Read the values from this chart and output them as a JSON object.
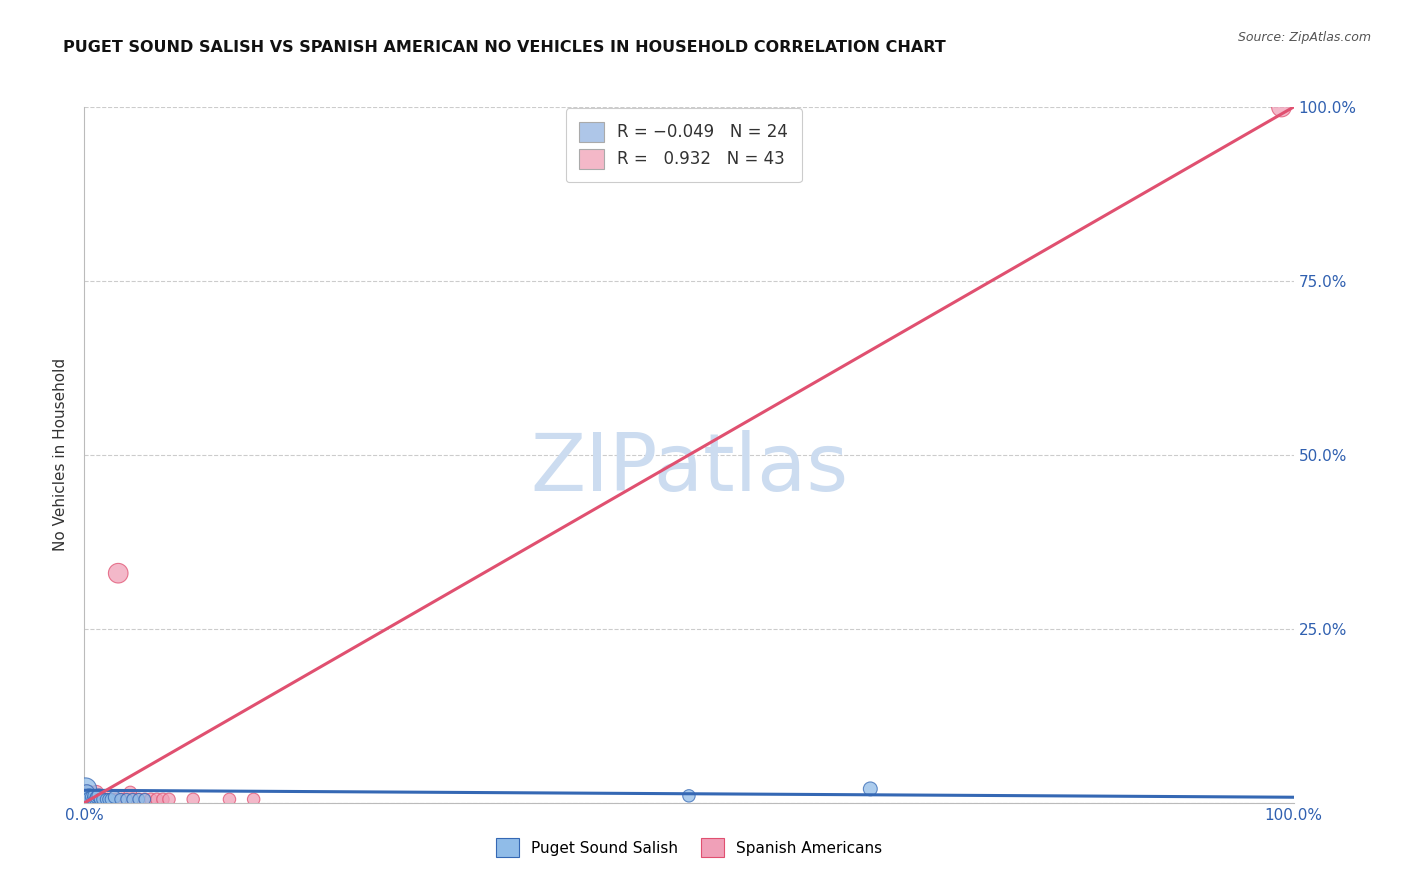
{
  "title": "PUGET SOUND SALISH VS SPANISH AMERICAN NO VEHICLES IN HOUSEHOLD CORRELATION CHART",
  "source": "Source: ZipAtlas.com",
  "ylabel": "No Vehicles in Household",
  "xlim": [
    0,
    1.0
  ],
  "ylim": [
    0,
    1.0
  ],
  "ytick_labels_right": [
    "100.0%",
    "75.0%",
    "50.0%",
    "25.0%",
    ""
  ],
  "ytick_positions": [
    1.0,
    0.75,
    0.5,
    0.25,
    0.0
  ],
  "xtick_positions": [
    0.0,
    0.25,
    0.5,
    0.75,
    1.0
  ],
  "xticklabels": [
    "0.0%",
    "",
    "",
    "",
    "100.0%"
  ],
  "legend_entries": [
    {
      "label_r": "R = ",
      "label_val": "-0.049",
      "label_n": "  N = ",
      "label_nval": "24",
      "color": "#aec6e8"
    },
    {
      "label_r": "R =  ",
      "label_val": "0.932",
      "label_n": "  N = ",
      "label_nval": "43",
      "color": "#f4b8c8"
    }
  ],
  "blue_line_color": "#3568b4",
  "pink_line_color": "#e05070",
  "blue_scatter_color": "#90bce8",
  "pink_scatter_color": "#f0a0b8",
  "blue_line_y0": 0.018,
  "blue_line_y1": 0.008,
  "pink_line_x0": 0.0,
  "pink_line_y0": 0.0,
  "pink_line_x1": 1.0,
  "pink_line_y1": 1.0,
  "watermark_text": "ZIPatlas",
  "watermark_color": "#ccdcf0",
  "grid_color": "#cccccc",
  "background_color": "#ffffff",
  "blue_scatter_x": [
    0.001,
    0.002,
    0.003,
    0.004,
    0.005,
    0.006,
    0.007,
    0.008,
    0.009,
    0.01,
    0.012,
    0.013,
    0.015,
    0.018,
    0.02,
    0.022,
    0.025,
    0.03,
    0.035,
    0.04,
    0.045,
    0.05,
    0.5,
    0.65
  ],
  "blue_scatter_y": [
    0.02,
    0.015,
    0.005,
    0.01,
    0.005,
    0.008,
    0.005,
    0.01,
    0.005,
    0.008,
    0.01,
    0.005,
    0.005,
    0.005,
    0.005,
    0.005,
    0.008,
    0.005,
    0.005,
    0.005,
    0.005,
    0.005,
    0.01,
    0.02
  ],
  "blue_scatter_sizes": [
    250,
    120,
    80,
    100,
    130,
    80,
    70,
    80,
    70,
    80,
    100,
    70,
    70,
    70,
    70,
    70,
    80,
    70,
    70,
    70,
    70,
    70,
    80,
    100
  ],
  "pink_scatter_x": [
    0.001,
    0.001,
    0.002,
    0.002,
    0.003,
    0.003,
    0.004,
    0.004,
    0.005,
    0.005,
    0.006,
    0.006,
    0.007,
    0.008,
    0.008,
    0.009,
    0.01,
    0.01,
    0.012,
    0.013,
    0.015,
    0.016,
    0.018,
    0.02,
    0.022,
    0.025,
    0.027,
    0.028,
    0.03,
    0.032,
    0.035,
    0.038,
    0.04,
    0.045,
    0.05,
    0.055,
    0.06,
    0.065,
    0.07,
    0.09,
    0.12,
    0.14,
    0.99
  ],
  "pink_scatter_y": [
    0.005,
    0.01,
    0.005,
    0.015,
    0.005,
    0.01,
    0.005,
    0.015,
    0.005,
    0.008,
    0.005,
    0.01,
    0.005,
    0.005,
    0.01,
    0.005,
    0.005,
    0.015,
    0.005,
    0.005,
    0.005,
    0.005,
    0.005,
    0.005,
    0.005,
    0.005,
    0.005,
    0.33,
    0.005,
    0.005,
    0.005,
    0.015,
    0.005,
    0.005,
    0.005,
    0.005,
    0.005,
    0.005,
    0.005,
    0.005,
    0.005,
    0.005,
    1.0
  ],
  "pink_scatter_sizes": [
    80,
    100,
    80,
    120,
    80,
    80,
    80,
    100,
    80,
    80,
    80,
    80,
    80,
    80,
    80,
    80,
    80,
    100,
    80,
    80,
    80,
    80,
    80,
    80,
    80,
    80,
    80,
    200,
    80,
    80,
    80,
    80,
    80,
    80,
    80,
    80,
    80,
    80,
    80,
    80,
    80,
    80,
    200
  ]
}
